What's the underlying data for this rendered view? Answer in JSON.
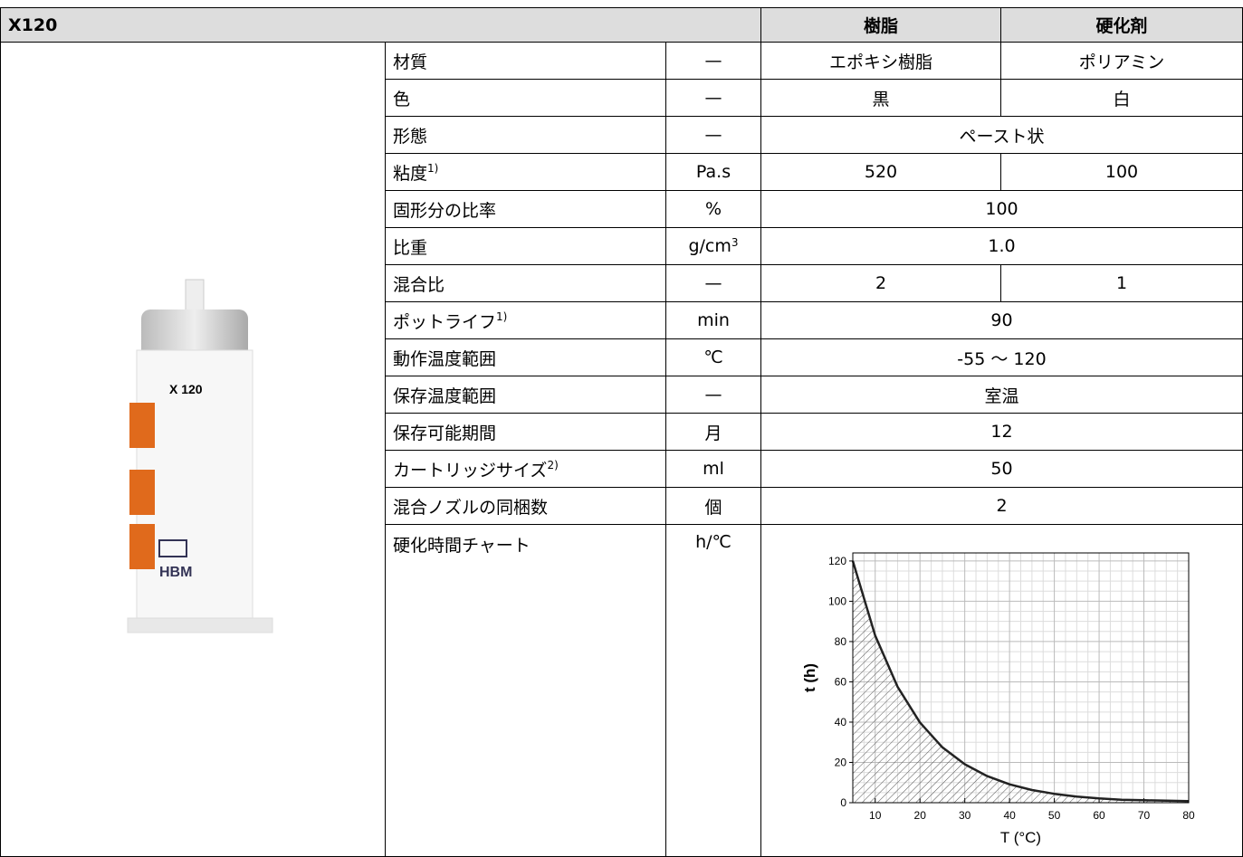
{
  "header": {
    "title": "X120",
    "columns": [
      "樹脂",
      "硬化剤"
    ]
  },
  "rows": [
    {
      "label": "材質",
      "unit": "—",
      "values": [
        "エポキシ樹脂",
        "ポリアミン"
      ]
    },
    {
      "label": "色",
      "unit": "—",
      "values": [
        "黒",
        "白"
      ]
    },
    {
      "label": "形態",
      "unit": "—",
      "values": [
        "ペースト状"
      ]
    },
    {
      "label": "粘度",
      "label_sup": "1)",
      "unit": "Pa.s",
      "values": [
        "520",
        "100"
      ]
    },
    {
      "label": "固形分の比率",
      "unit": "%",
      "values": [
        "100"
      ]
    },
    {
      "label": "比重",
      "unit": "g/cm",
      "unit_sup": "3",
      "values": [
        "1.0"
      ]
    },
    {
      "label": "混合比",
      "unit": "—",
      "values": [
        "2",
        "1"
      ]
    },
    {
      "label": "ポットライフ",
      "label_sup": "1)",
      "unit": "min",
      "values": [
        "90"
      ]
    },
    {
      "label": "動作温度範囲",
      "unit": "℃",
      "values": [
        "-55 ～ 120"
      ]
    },
    {
      "label": "保存温度範囲",
      "unit": "—",
      "values": [
        "室温"
      ]
    },
    {
      "label": "保存可能期間",
      "unit": "月",
      "values": [
        "12"
      ]
    },
    {
      "label": "カートリッジサイズ",
      "label_sup": "2)",
      "unit": "ml",
      "values": [
        "50"
      ]
    },
    {
      "label": "混合ノズルの同梱数",
      "unit": "個",
      "values": [
        "2"
      ]
    },
    {
      "label": "硬化時間チャート",
      "unit": "h/℃",
      "values": []
    }
  ],
  "product_image": {
    "labels": [
      "X 120",
      "HBM"
    ]
  },
  "chart_data": {
    "type": "line",
    "xlabel": "T (°C)",
    "ylabel": "t (h)",
    "x": [
      5,
      10,
      15,
      20,
      25,
      30,
      35,
      40,
      45,
      50,
      55,
      60,
      65,
      70,
      75,
      80
    ],
    "series": [
      {
        "color": "#222222",
        "values": [
          120,
          83,
          57.5,
          39.8,
          27.5,
          19.1,
          13.2,
          9.1,
          6.3,
          4.4,
          3.0,
          2.1,
          1.5,
          1.2,
          1.0,
          0.8
        ]
      }
    ],
    "xlim": [
      5,
      80
    ],
    "ylim": [
      0,
      124
    ],
    "xticks": [
      10,
      20,
      30,
      40,
      50,
      60,
      70,
      80
    ],
    "yticks": [
      0,
      20,
      40,
      60,
      80,
      100,
      120
    ],
    "grid": true,
    "hatch": true
  }
}
